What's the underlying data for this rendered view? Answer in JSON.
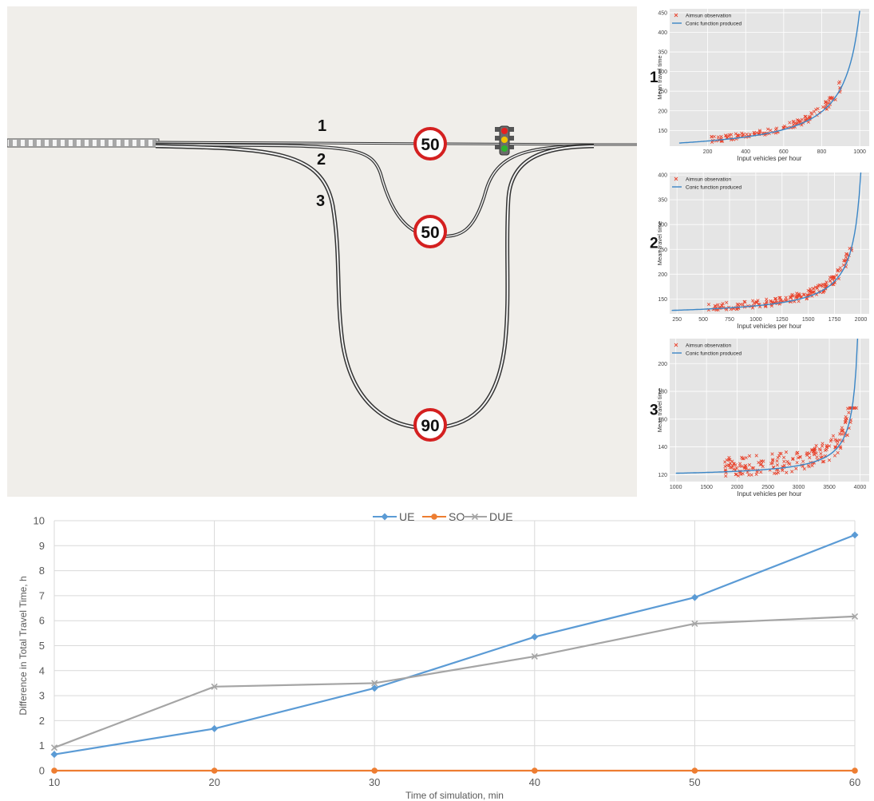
{
  "road_diagram": {
    "route_labels": [
      "1",
      "2",
      "3"
    ],
    "speed_limit_signs": [
      "50",
      "50",
      "90"
    ],
    "traffic_light": "traffic-light-icon"
  },
  "mini_plots": [
    {
      "panel_label": "1",
      "legend": [
        "Aimsun observation",
        "Conic function produced"
      ],
      "xlabel": "Input vehicles per hour",
      "ylabel": "Mean travel time",
      "xticks": [
        200,
        400,
        600,
        800,
        1000
      ],
      "yticks": [
        150,
        200,
        250,
        300,
        350,
        400,
        450
      ],
      "xlim": [
        0,
        1050
      ],
      "ylim": [
        110,
        460
      ],
      "curve": {
        "x0": 50,
        "xmax": 1000,
        "t0": 118,
        "tmax": 455,
        "shape": 0.09
      },
      "scatter": {
        "x_range": [
          220,
          900
        ],
        "y_range": [
          118,
          300
        ],
        "n": 130
      }
    },
    {
      "panel_label": "2",
      "legend": [
        "Aimsun observation",
        "Conic function produced"
      ],
      "xlabel": "Input vehicles per hour",
      "ylabel": "Mean travel time",
      "xticks": [
        250,
        500,
        750,
        1000,
        1250,
        1500,
        1750,
        2000
      ],
      "yticks": [
        150,
        200,
        250,
        300,
        350,
        400
      ],
      "xlim": [
        180,
        2080
      ],
      "ylim": [
        120,
        405
      ],
      "curve": {
        "x0": 200,
        "xmax": 2000,
        "t0": 127,
        "tmax": 405,
        "shape": 0.045
      },
      "scatter": {
        "x_range": [
          550,
          1920
        ],
        "y_range": [
          128,
          300
        ],
        "n": 180
      }
    },
    {
      "panel_label": "3",
      "legend": [
        "Aimsun observation",
        "Conic function produced"
      ],
      "xlabel": "Input vehicles per hour",
      "ylabel": "Mean travel time",
      "xticks": [
        1000,
        1500,
        2000,
        2500,
        3000,
        3500,
        4000
      ],
      "yticks": [
        120,
        140,
        160,
        180,
        200
      ],
      "xlim": [
        900,
        4150
      ],
      "ylim": [
        115,
        218
      ],
      "curve": {
        "x0": 1000,
        "xmax": 3960,
        "t0": 121,
        "tmax": 218,
        "shape": 0.03
      },
      "scatter": {
        "x_range": [
          1800,
          3950
        ],
        "y_range": [
          118,
          168
        ],
        "n": 200
      }
    }
  ],
  "chart_data": {
    "type": "line",
    "xlabel": "Time of simulation, min",
    "ylabel": "Difference in Total Travel Time, h",
    "x": [
      10,
      20,
      30,
      40,
      50,
      60
    ],
    "ylim": [
      0,
      10
    ],
    "yticks": [
      0,
      1,
      2,
      3,
      4,
      5,
      6,
      7,
      8,
      9,
      10
    ],
    "grid": true,
    "legend_position": "top",
    "series": [
      {
        "name": "UE",
        "values": [
          0.65,
          1.68,
          3.3,
          5.35,
          6.93,
          9.43
        ],
        "color": "#5b9bd5",
        "marker": "diamond"
      },
      {
        "name": "SO",
        "values": [
          0,
          0,
          0,
          0,
          0,
          0
        ],
        "color": "#ed7d31",
        "marker": "circle"
      },
      {
        "name": "DUE",
        "values": [
          0.92,
          3.36,
          3.5,
          4.57,
          5.88,
          6.17
        ],
        "color": "#a5a5a5",
        "marker": "x"
      }
    ]
  }
}
